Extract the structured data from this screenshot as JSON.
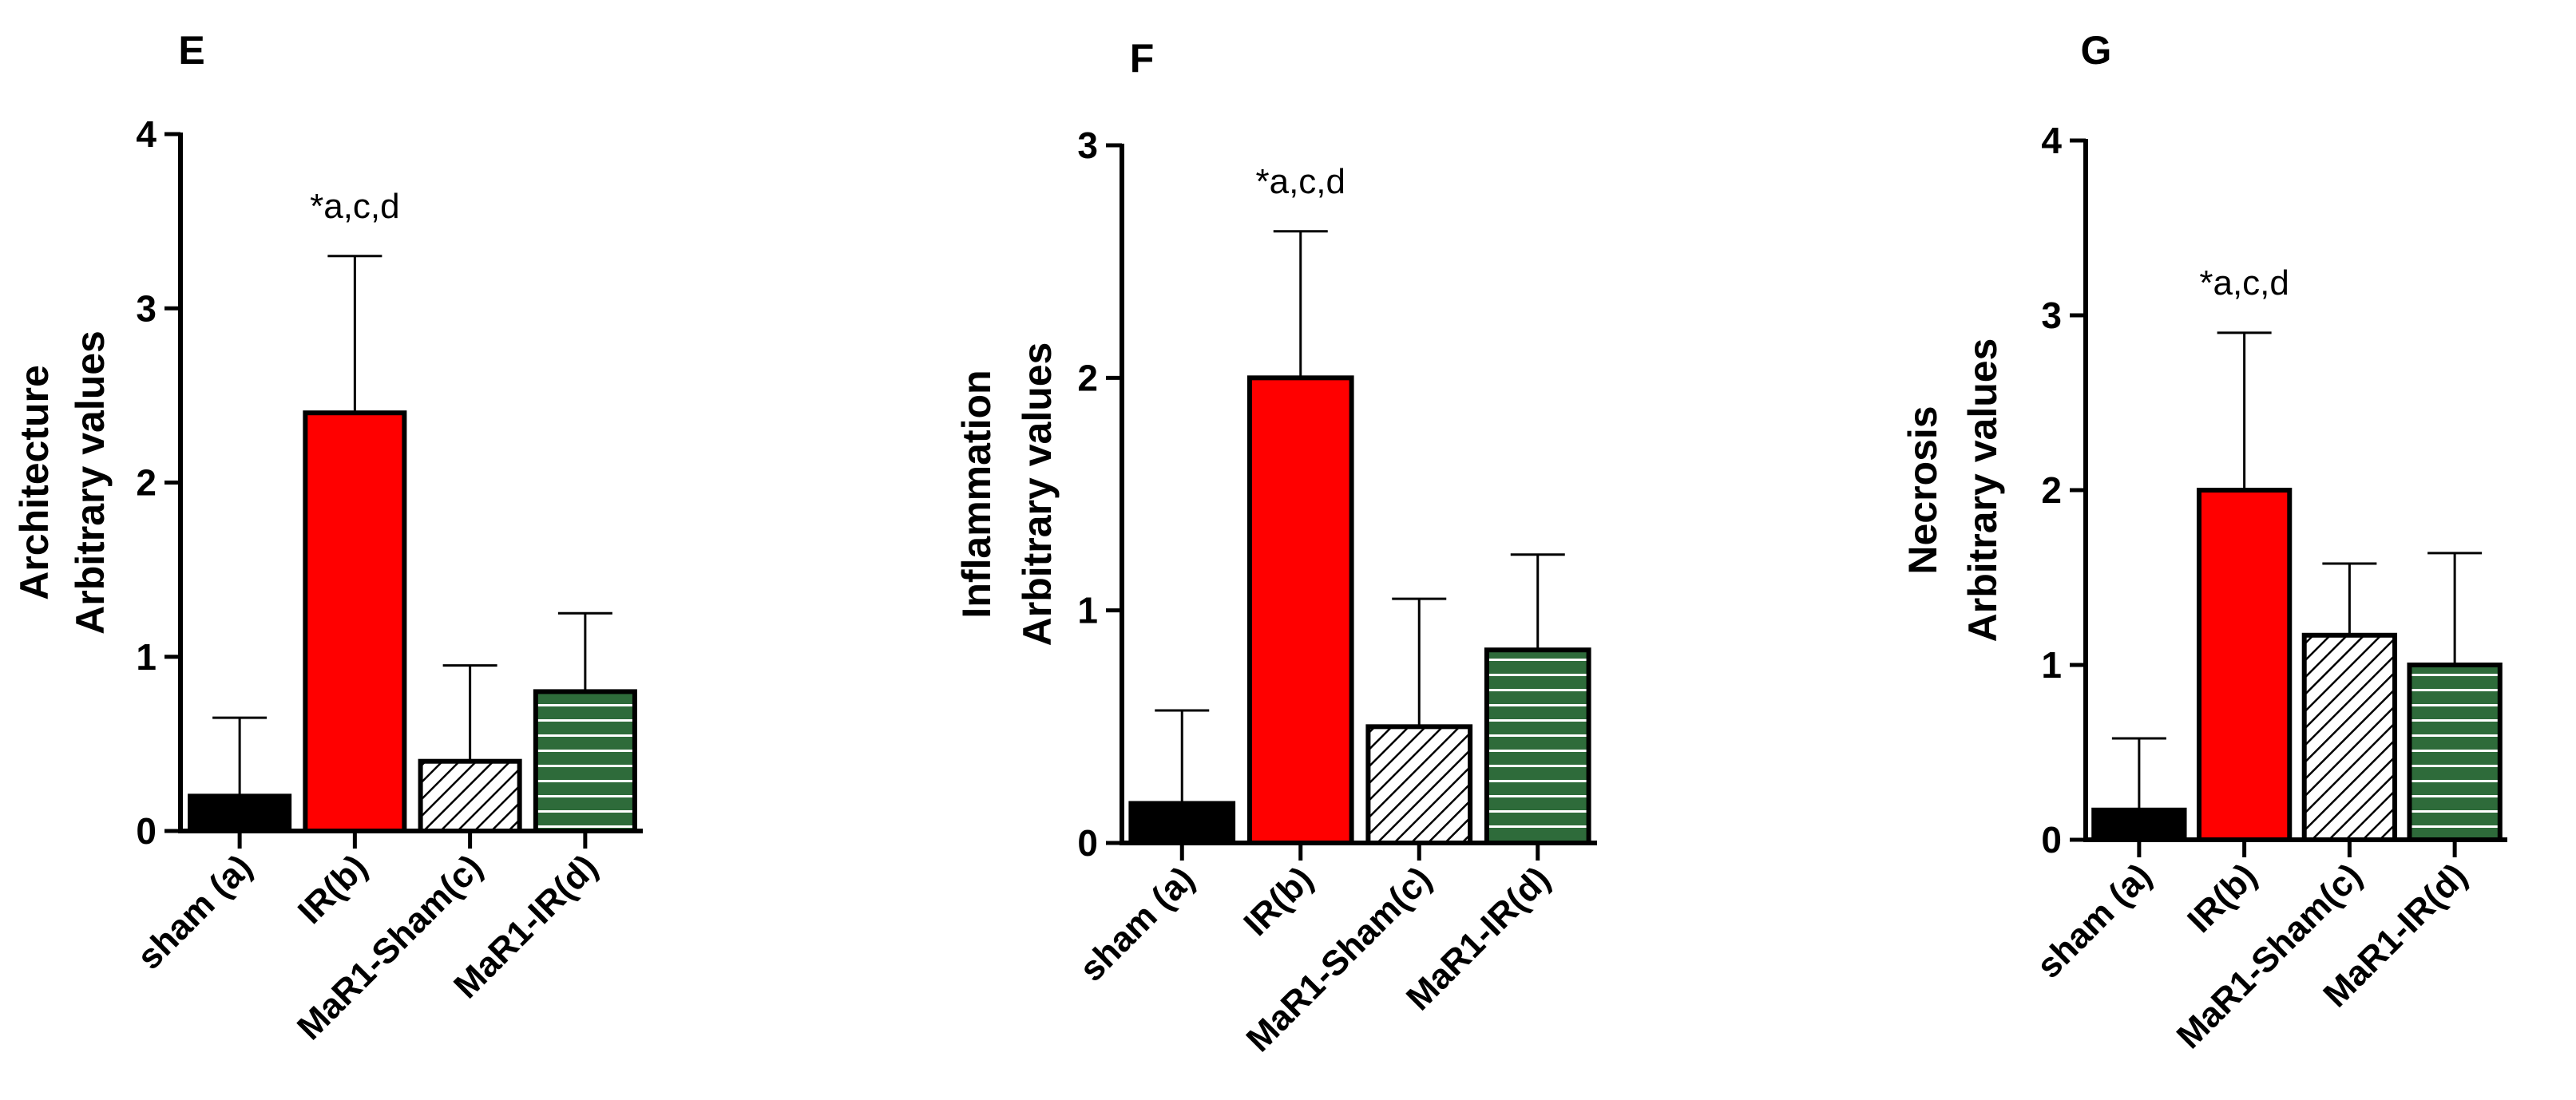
{
  "colors": {
    "sham": "#000000",
    "ir": "#ff0000",
    "mar1_sham_hatch": "#000000",
    "mar1_ir": "#2e6b3a",
    "mar1_ir_stripe": "#ffffff"
  },
  "chart_data": [
    {
      "panel": "E",
      "type": "bar",
      "ylabel_lines": [
        "Architecture",
        "Arbitrary values"
      ],
      "categories": [
        "sham (a)",
        "IR(b)",
        "MaR1-Sham(c)",
        "MaR1-IR(d)"
      ],
      "values": [
        0.2,
        2.4,
        0.4,
        0.8
      ],
      "error_upper": [
        0.65,
        3.3,
        0.95,
        1.25
      ],
      "ylim": [
        0,
        4
      ],
      "yticks": [
        0,
        1,
        2,
        3,
        4
      ],
      "annotation": "*a,c,d",
      "annotation_category": "IR(b)",
      "grid": false
    },
    {
      "panel": "F",
      "type": "bar",
      "ylabel_lines": [
        "Inflammation",
        "Arbitrary values"
      ],
      "categories": [
        "sham (a)",
        "IR(b)",
        "MaR1-Sham(c)",
        "MaR1-IR(d)"
      ],
      "values": [
        0.17,
        2.0,
        0.5,
        0.83
      ],
      "error_upper": [
        0.57,
        2.63,
        1.05,
        1.24
      ],
      "ylim": [
        0,
        3
      ],
      "yticks": [
        0,
        1,
        2,
        3
      ],
      "annotation": "*a,c,d",
      "annotation_category": "IR(b)",
      "grid": false
    },
    {
      "panel": "G",
      "type": "bar",
      "ylabel_lines": [
        "Necrosis",
        "Arbitrary values"
      ],
      "categories": [
        "sham (a)",
        "IR(b)",
        "MaR1-Sham(c)",
        "MaR1-IR(d)"
      ],
      "values": [
        0.17,
        2.0,
        1.17,
        1.0
      ],
      "error_upper": [
        0.58,
        2.9,
        1.58,
        1.64
      ],
      "ylim": [
        0,
        4
      ],
      "yticks": [
        0,
        1,
        2,
        3,
        4
      ],
      "annotation": "*a,c,d",
      "annotation_category": "IR(b)",
      "grid": false
    }
  ]
}
